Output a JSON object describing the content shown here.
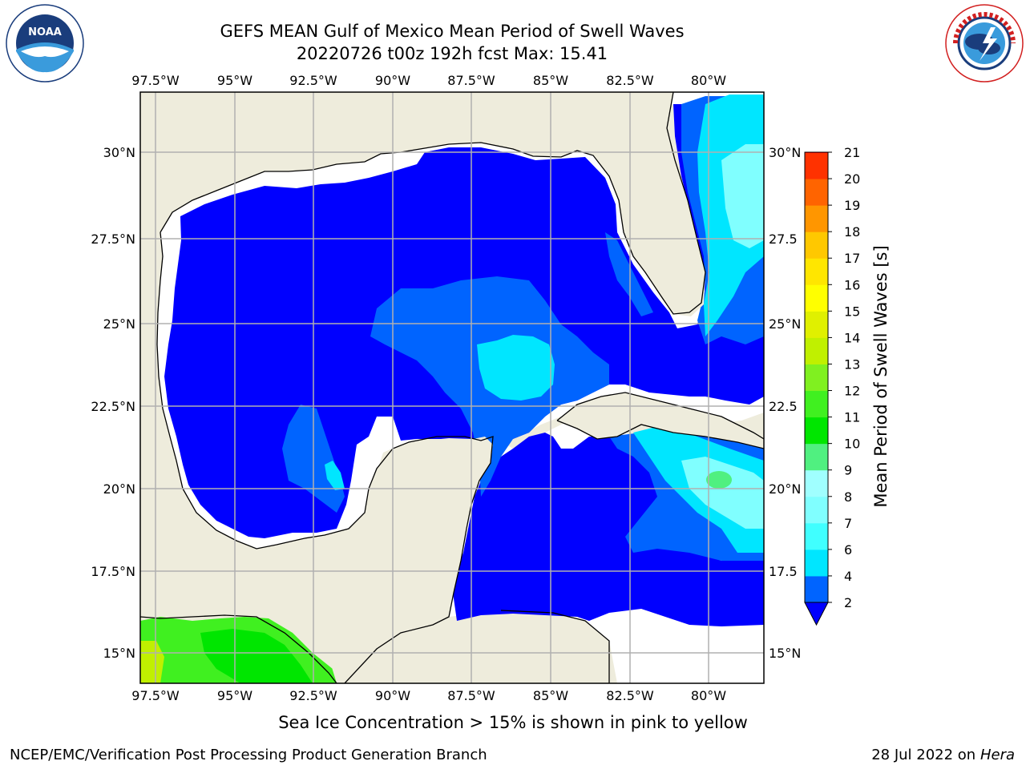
{
  "header": {
    "title_line1": "GEFS MEAN Gulf of Mexico Mean Period of Swell Waves",
    "title_line2": "20220726 t00z 192h fcst   Max: 15.41"
  },
  "logos": {
    "left": "noaa-logo",
    "right": "nws-logo"
  },
  "map": {
    "projection": "lat-lon",
    "lon_ticks": [
      "97.5°W",
      "95°W",
      "92.5°W",
      "90°W",
      "87.5°W",
      "85°W",
      "82.5°W",
      "80°W"
    ],
    "lat_ticks_left": [
      "30°N",
      "27.5°N",
      "25°N",
      "22.5°N",
      "20°N",
      "17.5°N",
      "15°N"
    ],
    "lat_ticks_right": [
      "30°N",
      "27.5",
      "25°N",
      "22.5",
      "20°N",
      "17.5",
      "15°N"
    ],
    "grid": true,
    "colors": {
      "land": "#eeecdc",
      "masked": "#ffffff",
      "grid": "#b0b0b0",
      "coast": "#000000"
    }
  },
  "colorbar": {
    "label": "Mean Period of Swell Waves [s]",
    "ticks": [
      "2",
      "4",
      "6",
      "7",
      "8",
      "9",
      "10",
      "11",
      "12",
      "13",
      "14",
      "15",
      "16",
      "17",
      "18",
      "19",
      "20",
      "21"
    ],
    "colors": [
      "#0064ff",
      "#00e6ff",
      "#40ffff",
      "#80ffff",
      "#a0ffff",
      "#50f080",
      "#00e600",
      "#40f020",
      "#80f020",
      "#c0f000",
      "#e0f000",
      "#ffff00",
      "#ffe600",
      "#ffc800",
      "#ff9600",
      "#ff6400",
      "#ff3200",
      "#ff0000"
    ],
    "extend_color": "#0000ff"
  },
  "footnote": "Sea Ice Concentration > 15% is shown in pink to yellow",
  "credits": {
    "left": "NCEP/EMC/Verification Post Processing Product Generation Branch",
    "right_prefix": "28 Jul 2022 on ",
    "right_host": "Hera"
  }
}
